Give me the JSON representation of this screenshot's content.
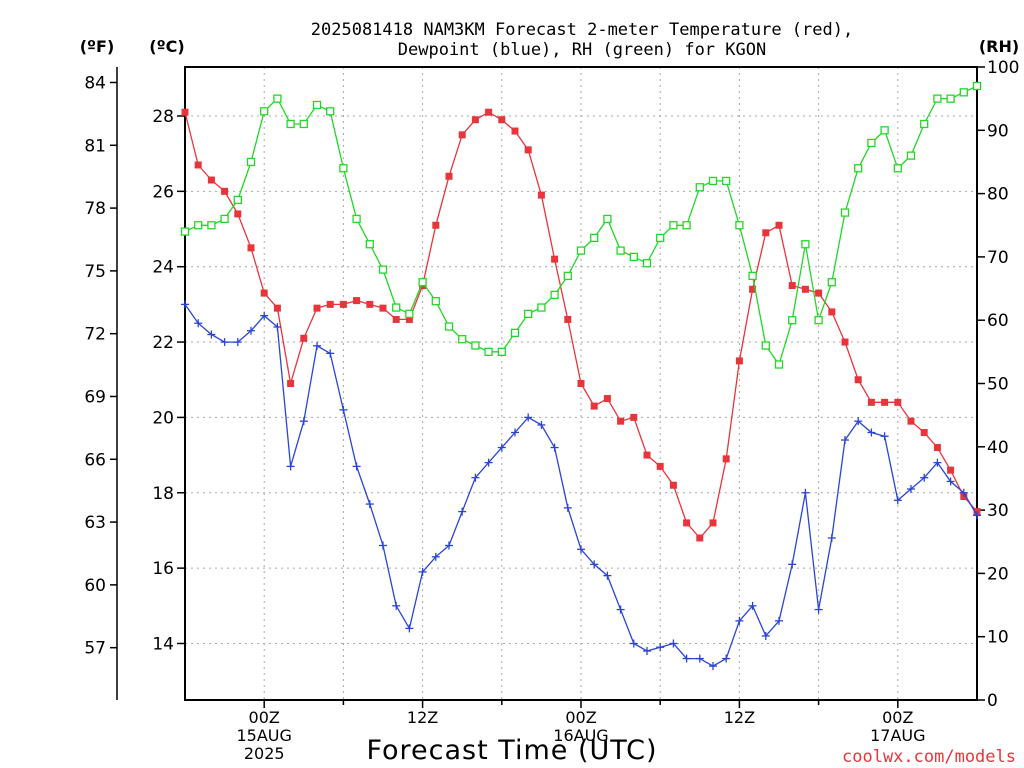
{
  "chart_data": {
    "type": "line",
    "title_line1": "2025081418 NAM3KM Forecast 2-meter Temperature (red),",
    "title_line2": "Dewpoint (blue), RH (green) for KGON",
    "unit_f": "(ºF)",
    "unit_c": "(ºC)",
    "unit_rh": "(RH)",
    "xlabel": "Forecast Time (UTC)",
    "credit": "coolwx.com/models",
    "grid": true,
    "x_range_hours": [
      -6,
      54
    ],
    "celsius_range": [
      12.5,
      29.3
    ],
    "rh_range": [
      0,
      100
    ],
    "celsius_ticks": [
      "14",
      "16",
      "18",
      "20",
      "22",
      "24",
      "26",
      "28"
    ],
    "fahrenheit_ticks": [
      "57",
      "60",
      "63",
      "66",
      "69",
      "72",
      "75",
      "78",
      "81",
      "84"
    ],
    "rh_ticks": [
      "0",
      "10",
      "20",
      "30",
      "40",
      "50",
      "60",
      "70",
      "80",
      "90",
      "100"
    ],
    "x_ticks": [
      {
        "hour": 0,
        "lines": [
          "00Z",
          "15AUG",
          "2025"
        ]
      },
      {
        "hour": 12,
        "lines": [
          "12Z"
        ]
      },
      {
        "hour": 24,
        "lines": [
          "00Z",
          "16AUG"
        ]
      },
      {
        "hour": 36,
        "lines": [
          "12Z"
        ]
      },
      {
        "hour": 48,
        "lines": [
          "00Z",
          "17AUG"
        ]
      }
    ],
    "hours": [
      -6,
      -5,
      -4,
      -3,
      -2,
      -1,
      0,
      1,
      2,
      3,
      4,
      5,
      6,
      7,
      8,
      9,
      10,
      11,
      12,
      13,
      14,
      15,
      16,
      17,
      18,
      19,
      20,
      21,
      22,
      23,
      24,
      25,
      26,
      27,
      28,
      29,
      30,
      31,
      32,
      33,
      34,
      35,
      36,
      37,
      38,
      39,
      40,
      41,
      42,
      43,
      44,
      45,
      46,
      47,
      48,
      49,
      50,
      51,
      52,
      53,
      54
    ],
    "series": [
      {
        "label": "2-meter Temperature (°C)",
        "color": "#e8353b",
        "marker": "filled-square",
        "values": [
          28.1,
          26.7,
          26.3,
          26.0,
          25.4,
          24.5,
          23.3,
          22.9,
          20.9,
          22.1,
          22.9,
          23.0,
          23.0,
          23.1,
          23.0,
          22.9,
          22.6,
          22.6,
          23.5,
          25.1,
          26.4,
          27.5,
          27.9,
          28.1,
          27.9,
          27.6,
          27.1,
          25.9,
          24.2,
          22.6,
          20.9,
          20.3,
          20.5,
          19.9,
          20.0,
          19.0,
          18.7,
          18.2,
          17.2,
          16.8,
          17.2,
          18.9,
          21.5,
          23.4,
          24.9,
          25.1,
          23.5,
          23.4,
          23.3,
          22.8,
          22.0,
          21.0,
          20.4,
          20.4,
          20.4,
          19.9,
          19.6,
          19.2,
          18.6,
          17.9,
          17.5
        ]
      },
      {
        "label": "Dewpoint (°C)",
        "color": "#2a44d8",
        "marker": "plus",
        "values": [
          23.0,
          22.5,
          22.2,
          22.0,
          22.0,
          22.3,
          22.7,
          22.4,
          18.7,
          19.9,
          21.9,
          21.7,
          20.2,
          18.7,
          17.7,
          16.6,
          15.0,
          14.4,
          15.9,
          16.3,
          16.6,
          17.5,
          18.4,
          18.8,
          19.2,
          19.6,
          20.0,
          19.8,
          19.2,
          17.6,
          16.5,
          16.1,
          15.8,
          14.9,
          14.0,
          13.8,
          13.9,
          14.0,
          13.6,
          13.6,
          13.4,
          13.6,
          14.6,
          15.0,
          14.2,
          14.6,
          16.1,
          18.0,
          14.9,
          16.8,
          19.4,
          19.9,
          19.6,
          19.5,
          17.8,
          18.1,
          18.4,
          18.8,
          18.3,
          18.0,
          17.4
        ]
      },
      {
        "label": "RH (%)",
        "color": "#22d827",
        "marker": "open-square",
        "values": [
          74,
          75,
          75,
          76,
          79,
          85,
          93,
          95,
          91,
          91,
          94,
          93,
          84,
          76,
          72,
          68,
          62,
          61,
          66,
          63,
          59,
          57,
          56,
          55,
          55,
          58,
          61,
          62,
          64,
          67,
          71,
          73,
          76,
          71,
          70,
          69,
          73,
          75,
          75,
          81,
          82,
          82,
          75,
          67,
          56,
          53,
          60,
          72,
          60,
          66,
          77,
          84,
          88,
          90,
          84,
          86,
          91,
          95,
          95,
          96,
          97
        ]
      }
    ]
  }
}
